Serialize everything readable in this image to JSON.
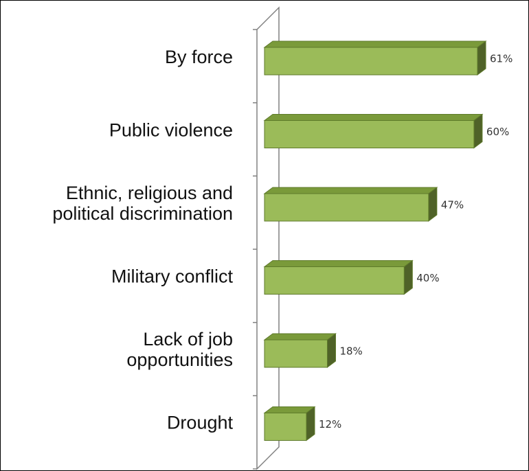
{
  "chart_data": {
    "type": "bar",
    "orientation": "horizontal",
    "style": "3d",
    "categories": [
      "By force",
      "Public violence",
      "Ethnic, religious and political discrimination",
      "Military conflict",
      "Lack of job opportunities",
      "Drought"
    ],
    "category_lines": [
      [
        "By force"
      ],
      [
        "Public violence"
      ],
      [
        "Ethnic, religious and",
        "political discrimination"
      ],
      [
        "Military conflict"
      ],
      [
        "Lack of job",
        "opportunities"
      ],
      [
        "Drought"
      ]
    ],
    "values": [
      61,
      60,
      47,
      40,
      18,
      12
    ],
    "value_labels": [
      "61%",
      "60%",
      "47%",
      "40%",
      "18%",
      "12%"
    ],
    "xlim": [
      0,
      61
    ],
    "legend": "none",
    "grid": false,
    "colors": {
      "bar_front": "#9BBB59",
      "bar_top": "#7A9A3A",
      "bar_side": "#4F6228",
      "bar_edge": "#5E7A2A",
      "axis": "#808080"
    }
  }
}
